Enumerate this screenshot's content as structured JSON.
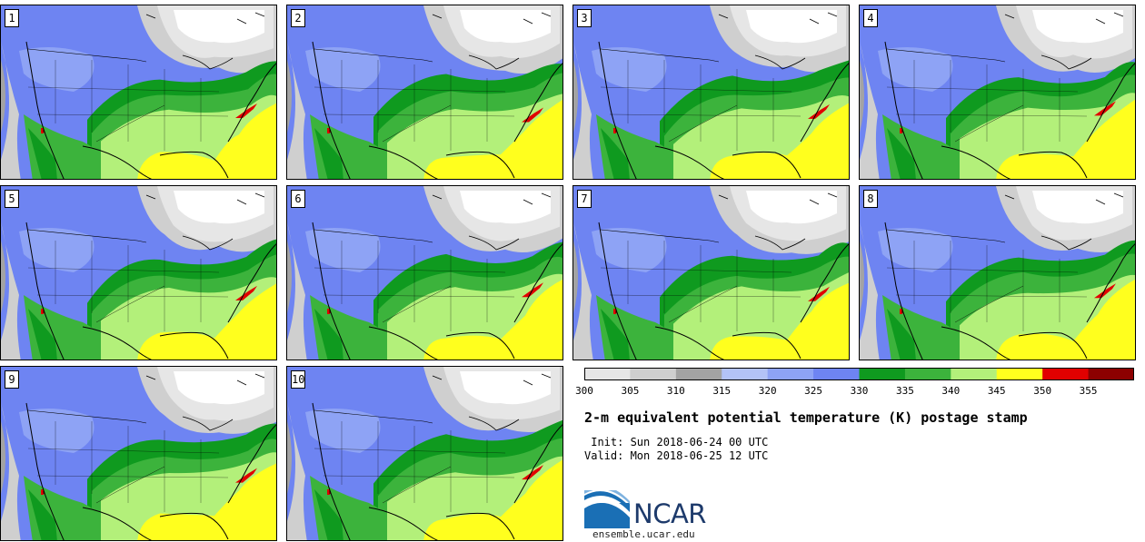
{
  "members": [
    "1",
    "2",
    "3",
    "4",
    "5",
    "6",
    "7",
    "8",
    "9",
    "10"
  ],
  "legend": {
    "ticks": [
      "300",
      "305",
      "310",
      "315",
      "320",
      "325",
      "330",
      "335",
      "340",
      "345",
      "350",
      "355"
    ],
    "colors": [
      "#e6e6e6",
      "#cfcfcf",
      "#a3a3a3",
      "#b3c3f7",
      "#8ea3f5",
      "#6e84f2",
      "#0f9a1f",
      "#3cb33c",
      "#b3f07a",
      "#ffff1e",
      "#e10000",
      "#8c0000"
    ]
  },
  "title": "2-m equivalent potential temperature (K) postage stamp",
  "init": " Init: Sun 2018-06-24 00 UTC",
  "valid": "Valid: Mon 2018-06-25 12 UTC",
  "logo": {
    "name": "NCAR",
    "url": "ensemble.ucar.edu"
  }
}
